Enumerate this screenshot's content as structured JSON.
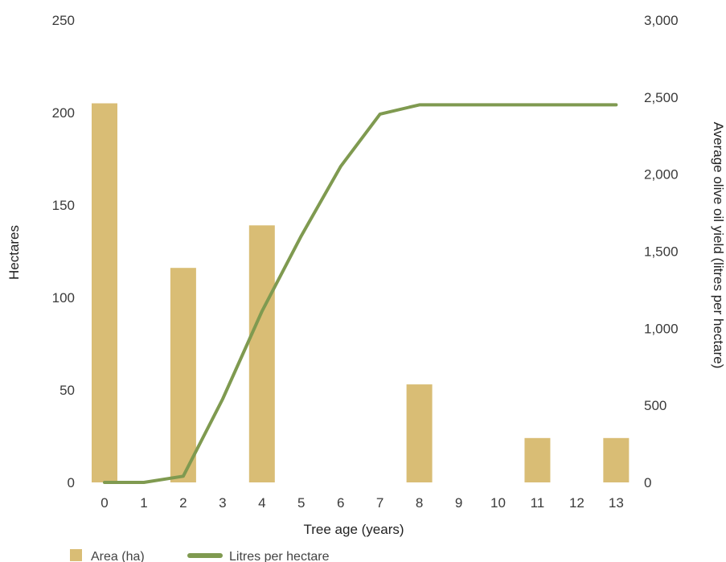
{
  "chart_data": {
    "type": "bar+line",
    "title": "",
    "xlabel": "Tree age (years)",
    "ylabel_left": "Hectares",
    "ylabel_right": "Average olive oil yield (litres per hectare)",
    "categories": [
      "0",
      "1",
      "2",
      "3",
      "4",
      "5",
      "6",
      "7",
      "8",
      "9",
      "10",
      "11",
      "12",
      "13"
    ],
    "left_axis": {
      "ylim": [
        0,
        250
      ],
      "ticks": [
        "0",
        "50",
        "100",
        "150",
        "200",
        "250"
      ],
      "tick_values": [
        0,
        50,
        100,
        150,
        200,
        250
      ]
    },
    "right_axis": {
      "ylim": [
        0,
        3000
      ],
      "ticks": [
        "0",
        "500",
        "1,000",
        "1,500",
        "2,000",
        "2,500",
        "3,000"
      ],
      "tick_values": [
        0,
        500,
        1000,
        1500,
        2000,
        2500,
        3000
      ]
    },
    "series": [
      {
        "name": "Area (ha)",
        "type": "bar",
        "axis": "left",
        "color": "#d9bd75",
        "values": [
          205,
          0,
          116,
          0,
          139,
          0,
          0,
          0,
          53,
          0,
          0,
          24,
          0,
          24
        ]
      },
      {
        "name": "Litres per hectare",
        "type": "line",
        "axis": "right",
        "color": "#7f9a50",
        "values": [
          0,
          0,
          40,
          540,
          1110,
          1600,
          2050,
          2390,
          2450,
          2450,
          2450,
          2450,
          2450,
          2450
        ]
      }
    ],
    "grid": false,
    "legend": "bottom-left"
  }
}
